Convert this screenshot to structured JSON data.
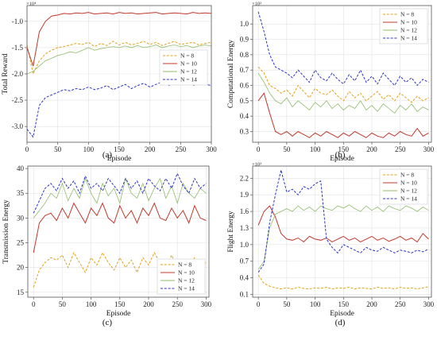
{
  "series_styles": [
    {
      "name": "N = 8",
      "color": "#e3a21a",
      "dash": "3,1.8",
      "width": 1.0
    },
    {
      "name": "N = 10",
      "color": "#c0392b",
      "dash": "",
      "width": 1.0
    },
    {
      "name": "N = 12",
      "color": "#8fbc6a",
      "dash": "",
      "width": 0.8
    },
    {
      "name": "N = 14",
      "color": "#2b35c7",
      "dash": "3,1.8",
      "width": 1.0
    }
  ],
  "chart_data": [
    {
      "type": "line",
      "panel_label": "(a)",
      "xlabel": "Episode",
      "ylabel": "Total Reward",
      "exponent_label": "×10⁴",
      "xlim": [
        0,
        300
      ],
      "ylim": [
        -3.3,
        -0.7
      ],
      "xticks": [
        0,
        50,
        100,
        150,
        200,
        250,
        300
      ],
      "yticks": [
        -3.0,
        -2.5,
        -2.0,
        -1.5,
        -1.0
      ],
      "ytick_labels": [
        "-3.0",
        "-2.5",
        "-2.0",
        "-1.5",
        "-1.0"
      ],
      "legend_position": "center-right",
      "x": [
        0,
        10,
        20,
        30,
        40,
        50,
        60,
        70,
        80,
        90,
        100,
        110,
        120,
        130,
        140,
        150,
        160,
        170,
        180,
        190,
        200,
        210,
        220,
        230,
        240,
        250,
        260,
        270,
        280,
        290,
        300
      ],
      "series": [
        {
          "name": "N = 8",
          "values": [
            -1.45,
            -2.0,
            -1.75,
            -1.62,
            -1.55,
            -1.5,
            -1.48,
            -1.45,
            -1.42,
            -1.44,
            -1.4,
            -1.48,
            -1.42,
            -1.46,
            -1.38,
            -1.45,
            -1.4,
            -1.45,
            -1.42,
            -1.38,
            -1.44,
            -1.4,
            -1.46,
            -1.42,
            -1.38,
            -1.44,
            -1.42,
            -1.4,
            -1.45,
            -1.42,
            -1.4
          ]
        },
        {
          "name": "N = 10",
          "values": [
            -1.5,
            -1.85,
            -1.2,
            -1.0,
            -0.9,
            -0.88,
            -0.85,
            -0.86,
            -0.84,
            -0.85,
            -0.83,
            -0.86,
            -0.85,
            -0.84,
            -0.86,
            -0.83,
            -0.85,
            -0.84,
            -0.86,
            -0.85,
            -0.84,
            -0.83,
            -0.86,
            -0.85,
            -0.84,
            -0.85,
            -0.86,
            -0.83,
            -0.85,
            -0.84,
            -0.85
          ]
        },
        {
          "name": "N = 12",
          "values": [
            -2.0,
            -1.95,
            -1.85,
            -1.75,
            -1.7,
            -1.65,
            -1.62,
            -1.58,
            -1.6,
            -1.55,
            -1.5,
            -1.55,
            -1.52,
            -1.5,
            -1.48,
            -1.5,
            -1.47,
            -1.5,
            -1.46,
            -1.5,
            -1.48,
            -1.45,
            -1.5,
            -1.47,
            -1.45,
            -1.48,
            -1.46,
            -1.5,
            -1.47,
            -1.45,
            -1.47
          ]
        },
        {
          "name": "N = 14",
          "values": [
            -3.05,
            -3.2,
            -2.6,
            -2.45,
            -2.4,
            -2.35,
            -2.3,
            -2.32,
            -2.28,
            -2.3,
            -2.25,
            -2.3,
            -2.27,
            -2.22,
            -2.3,
            -2.25,
            -2.2,
            -2.28,
            -2.22,
            -2.18,
            -2.25,
            -2.2,
            -2.15,
            -2.22,
            -2.18,
            -2.2,
            -2.15,
            -2.22,
            -2.18,
            -2.2,
            -2.22
          ]
        }
      ]
    },
    {
      "type": "line",
      "panel_label": "(b)",
      "xlabel": "Episode",
      "ylabel": "Computational Energy",
      "exponent_label": "×10²",
      "xlim": [
        -10,
        305
      ],
      "ylim": [
        0.23,
        1.12
      ],
      "xticks": [
        0,
        50,
        100,
        150,
        200,
        250,
        300
      ],
      "yticks": [
        0.3,
        0.4,
        0.5,
        0.6,
        0.7,
        0.8,
        0.9,
        1.0
      ],
      "ytick_labels": [
        "0.3",
        "0.4",
        "0.5",
        "0.6",
        "0.7",
        "0.8",
        "0.9",
        "1.0"
      ],
      "legend_position": "top-right",
      "x": [
        0,
        10,
        20,
        30,
        40,
        50,
        60,
        70,
        80,
        90,
        100,
        110,
        120,
        130,
        140,
        150,
        160,
        170,
        180,
        190,
        200,
        210,
        220,
        230,
        240,
        250,
        260,
        270,
        280,
        290,
        300
      ],
      "series": [
        {
          "name": "N = 8",
          "values": [
            0.72,
            0.68,
            0.6,
            0.58,
            0.55,
            0.57,
            0.53,
            0.6,
            0.56,
            0.52,
            0.58,
            0.55,
            0.54,
            0.57,
            0.53,
            0.5,
            0.56,
            0.52,
            0.55,
            0.5,
            0.53,
            0.56,
            0.51,
            0.54,
            0.5,
            0.55,
            0.52,
            0.49,
            0.53,
            0.5,
            0.52
          ]
        },
        {
          "name": "N = 10",
          "values": [
            0.5,
            0.55,
            0.42,
            0.3,
            0.28,
            0.3,
            0.27,
            0.3,
            0.28,
            0.26,
            0.29,
            0.27,
            0.3,
            0.28,
            0.26,
            0.29,
            0.27,
            0.3,
            0.28,
            0.26,
            0.29,
            0.27,
            0.26,
            0.29,
            0.27,
            0.3,
            0.28,
            0.27,
            0.32,
            0.27,
            0.29
          ]
        },
        {
          "name": "N = 12",
          "values": [
            0.68,
            0.62,
            0.55,
            0.5,
            0.48,
            0.52,
            0.46,
            0.5,
            0.47,
            0.44,
            0.49,
            0.46,
            0.5,
            0.45,
            0.48,
            0.44,
            0.47,
            0.45,
            0.5,
            0.44,
            0.47,
            0.43,
            0.48,
            0.45,
            0.42,
            0.47,
            0.44,
            0.48,
            0.43,
            0.46,
            0.44
          ]
        },
        {
          "name": "N = 14",
          "values": [
            1.08,
            0.95,
            0.8,
            0.72,
            0.7,
            0.68,
            0.65,
            0.7,
            0.66,
            0.62,
            0.7,
            0.65,
            0.63,
            0.68,
            0.64,
            0.61,
            0.67,
            0.63,
            0.7,
            0.62,
            0.66,
            0.61,
            0.68,
            0.64,
            0.6,
            0.66,
            0.62,
            0.65,
            0.6,
            0.64,
            0.62
          ]
        }
      ]
    },
    {
      "type": "line",
      "panel_label": "(c)",
      "xlabel": "Episode",
      "ylabel": "Transmission Energy",
      "exponent_label": "",
      "xlim": [
        -10,
        305
      ],
      "ylim": [
        14,
        40.5
      ],
      "xticks": [
        0,
        50,
        100,
        150,
        200,
        250,
        300
      ],
      "yticks": [
        15,
        20,
        25,
        30,
        35,
        40
      ],
      "ytick_labels": [
        "15",
        "20",
        "25",
        "30",
        "35",
        "40"
      ],
      "legend_position": "bottom-right",
      "x": [
        0,
        10,
        20,
        30,
        40,
        50,
        60,
        70,
        80,
        90,
        100,
        110,
        120,
        130,
        140,
        150,
        160,
        170,
        180,
        190,
        200,
        210,
        220,
        230,
        240,
        250,
        260,
        270,
        280,
        290,
        300
      ],
      "series": [
        {
          "name": "N = 8",
          "values": [
            16,
            19.5,
            21,
            22,
            21.5,
            22.5,
            20,
            23,
            21,
            19,
            22,
            20.5,
            23,
            21,
            19.5,
            22,
            20,
            21.5,
            19,
            22,
            20.5,
            23,
            21,
            19.5,
            22.5,
            20,
            21.5,
            19,
            22,
            20.5,
            21
          ]
        },
        {
          "name": "N = 10",
          "values": [
            23,
            29,
            30.5,
            31,
            29.5,
            32,
            30,
            33,
            31,
            29,
            32,
            30.5,
            33,
            30,
            29,
            32.5,
            30,
            31.5,
            29,
            32,
            30.5,
            33,
            30,
            29.5,
            32,
            30,
            31.5,
            29,
            32.5,
            30,
            29.5
          ]
        },
        {
          "name": "N = 12",
          "values": [
            30,
            31.5,
            33,
            35,
            34,
            37,
            33.5,
            36,
            34,
            38,
            35,
            33,
            37,
            34.5,
            36,
            33,
            38,
            35,
            34,
            37,
            33.5,
            36,
            38,
            34,
            36.5,
            33,
            37,
            35,
            34,
            36,
            35
          ]
        },
        {
          "name": "N = 14",
          "values": [
            31,
            33.5,
            36,
            37,
            35.5,
            38,
            36,
            37.5,
            35,
            38.5,
            36,
            37,
            35.5,
            38,
            36.5,
            35,
            38,
            36,
            37.5,
            35,
            38,
            36.5,
            35.5,
            38,
            36,
            39,
            36.5,
            35,
            38,
            36,
            37
          ]
        }
      ]
    },
    {
      "type": "line",
      "panel_label": "(d)",
      "xlabel": "Episode",
      "ylabel": "Flight Energy",
      "exponent_label": "×10²",
      "xlim": [
        -10,
        305
      ],
      "ylim": [
        0.05,
        2.42
      ],
      "xticks": [
        0,
        50,
        100,
        150,
        200,
        250,
        300
      ],
      "yticks": [
        0.1,
        0.4,
        0.7,
        1.0,
        1.3,
        1.6,
        1.9,
        2.2
      ],
      "ytick_labels": [
        "0.1",
        "0.4",
        "0.7",
        "1.0",
        "1.3",
        "1.6",
        "1.9",
        "2.2"
      ],
      "legend_position": "top-right",
      "x": [
        0,
        10,
        20,
        30,
        40,
        50,
        60,
        70,
        80,
        90,
        100,
        110,
        120,
        130,
        140,
        150,
        160,
        170,
        180,
        190,
        200,
        210,
        220,
        230,
        240,
        250,
        260,
        270,
        280,
        290,
        300
      ],
      "series": [
        {
          "name": "N = 8",
          "values": [
            0.45,
            0.3,
            0.25,
            0.22,
            0.2,
            0.22,
            0.2,
            0.23,
            0.21,
            0.2,
            0.22,
            0.21,
            0.23,
            0.2,
            0.22,
            0.21,
            0.23,
            0.2,
            0.22,
            0.21,
            0.2,
            0.23,
            0.21,
            0.22,
            0.2,
            0.23,
            0.21,
            0.22,
            0.2,
            0.22,
            0.24
          ]
        },
        {
          "name": "N = 10",
          "values": [
            1.35,
            1.6,
            1.7,
            1.5,
            1.2,
            1.1,
            1.08,
            1.12,
            1.05,
            1.15,
            1.1,
            1.08,
            1.12,
            1.05,
            1.1,
            1.15,
            1.08,
            1.12,
            1.05,
            1.1,
            1.15,
            1.08,
            1.12,
            1.06,
            1.1,
            1.15,
            1.08,
            1.12,
            1.05,
            1.2,
            1.1
          ]
        },
        {
          "name": "N = 12",
          "values": [
            0.55,
            0.7,
            1.3,
            1.55,
            1.6,
            1.65,
            1.6,
            1.7,
            1.62,
            1.68,
            1.6,
            1.7,
            1.65,
            1.62,
            1.7,
            1.66,
            1.72,
            1.65,
            1.6,
            1.7,
            1.62,
            1.68,
            1.6,
            1.7,
            1.65,
            1.62,
            1.7,
            1.66,
            1.6,
            1.68,
            1.62
          ]
        },
        {
          "name": "N = 14",
          "values": [
            0.5,
            0.65,
            1.4,
            1.9,
            2.35,
            1.95,
            2.0,
            1.9,
            2.05,
            2.0,
            2.1,
            2.15,
            1.1,
            0.95,
            0.85,
            1.0,
            0.95,
            0.9,
            0.85,
            0.95,
            0.9,
            0.88,
            0.95,
            0.9,
            0.85,
            0.9,
            0.88,
            0.85,
            0.9,
            0.87,
            0.92
          ]
        }
      ]
    }
  ]
}
